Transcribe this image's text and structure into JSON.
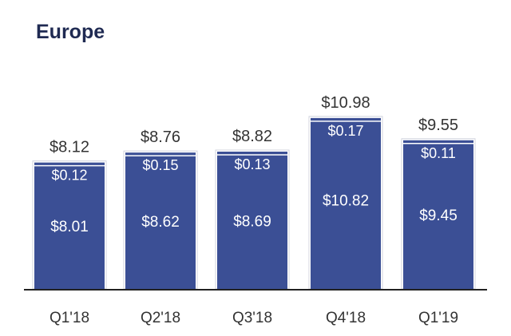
{
  "chart_data": {
    "type": "bar",
    "stacked": true,
    "title": "Europe",
    "categories": [
      "Q1'18",
      "Q2'18",
      "Q3'18",
      "Q4'18",
      "Q1'19"
    ],
    "series": [
      {
        "values": [
          8.01,
          8.62,
          8.69,
          10.82,
          9.45
        ]
      },
      {
        "values": [
          0.12,
          0.15,
          0.13,
          0.17,
          0.11
        ]
      }
    ],
    "segment_labels": [
      [
        "$8.01",
        "$8.62",
        "$8.69",
        "$10.82",
        "$9.45"
      ],
      [
        "$0.12",
        "$0.15",
        "$0.13",
        "$0.17",
        "$0.11"
      ]
    ],
    "totals": [
      8.12,
      8.76,
      8.82,
      10.98,
      9.55
    ],
    "total_labels": [
      "$8.12",
      "$8.76",
      "$8.82",
      "$10.98",
      "$9.55"
    ],
    "grid": false,
    "colors": {
      "bar": "#3b4f95",
      "title": "#1f2a52",
      "axis": "#222222",
      "label_dark": "#333333",
      "label_light": "#ffffff"
    }
  }
}
